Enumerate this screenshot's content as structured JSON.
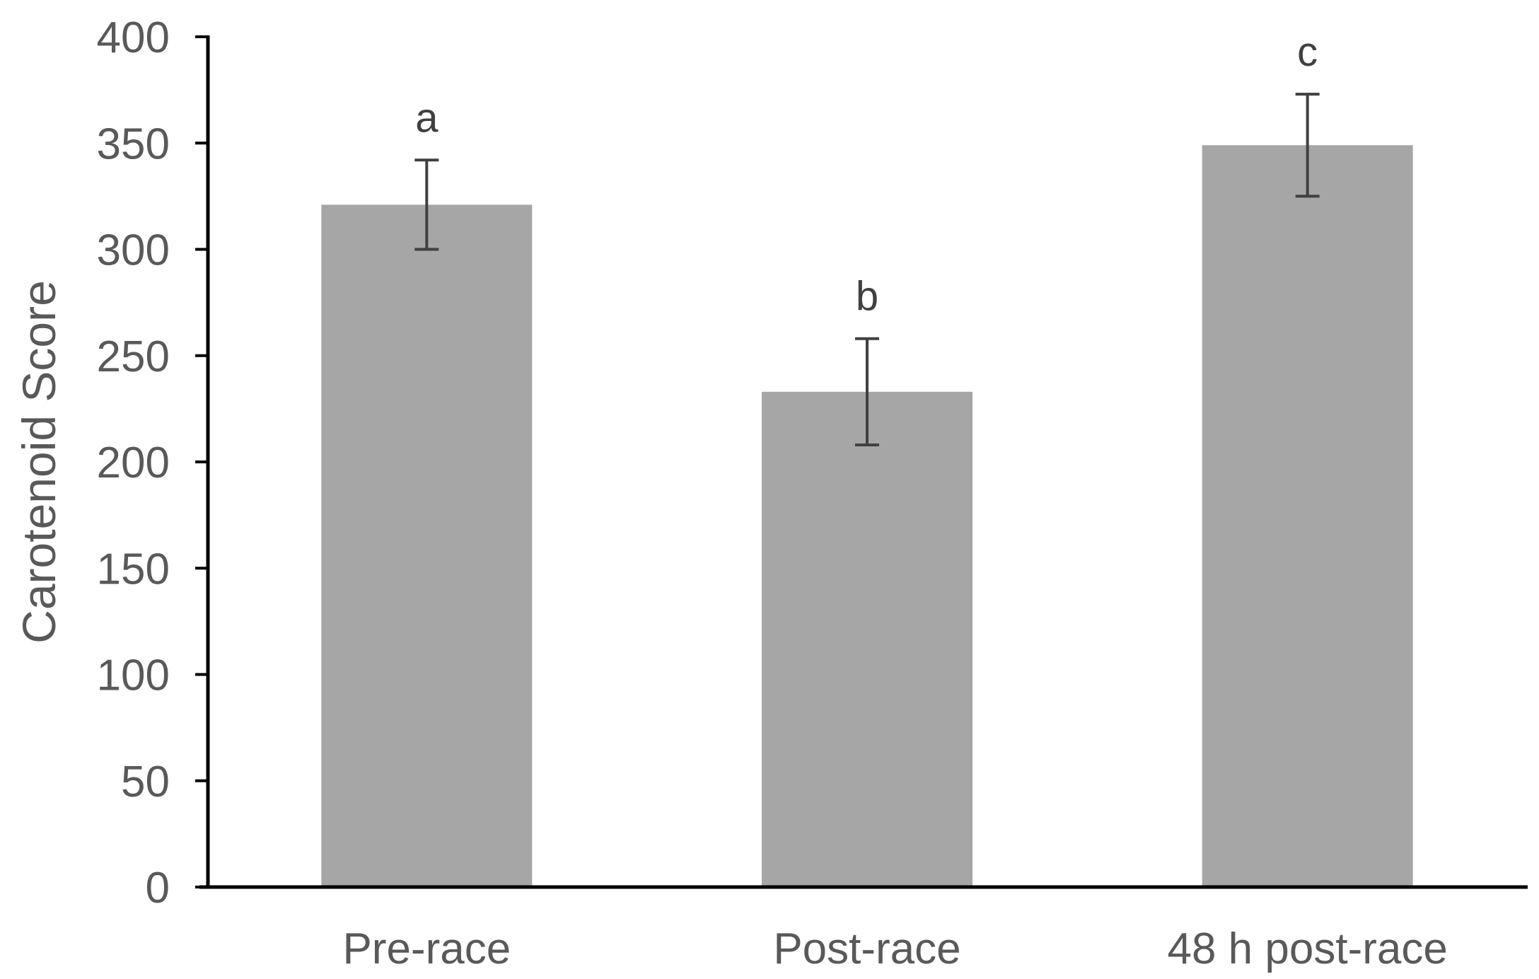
{
  "chart_data": {
    "type": "bar",
    "title": "",
    "xlabel": "",
    "ylabel": "Carotenoid Score",
    "categories": [
      "Pre-race",
      "Post-race",
      "48 h post-race"
    ],
    "values": [
      321,
      233,
      349
    ],
    "error_bars": [
      21,
      25,
      24
    ],
    "significance_labels": [
      "a",
      "b",
      "c"
    ],
    "ylim": [
      0,
      400
    ],
    "yticks": [
      0,
      50,
      100,
      150,
      200,
      250,
      300,
      350,
      400
    ],
    "grid": false,
    "legend": "none",
    "colors": {
      "bar": "#a6a6a6",
      "error_bar": "#404040",
      "axis": "#000000",
      "text": "#595959"
    }
  }
}
